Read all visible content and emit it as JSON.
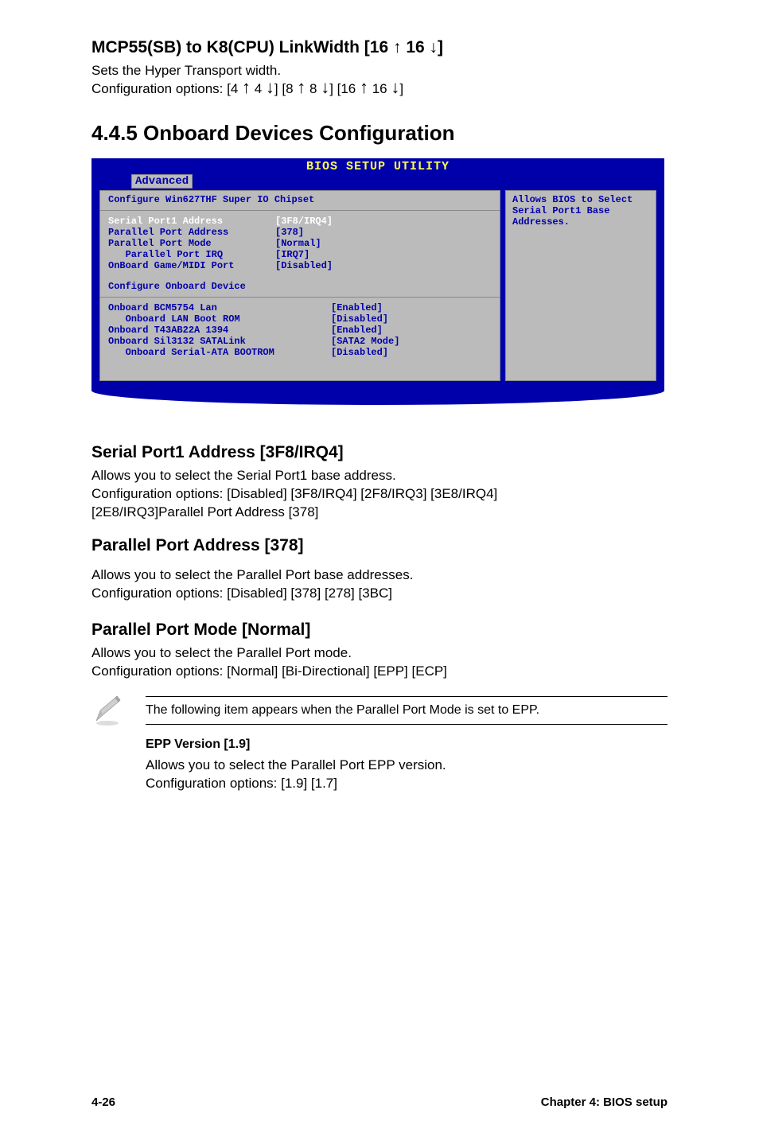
{
  "section_mcp": {
    "heading": "MCP55(SB) to K8(CPU) LinkWidth [16 ↑ 16 ↓]",
    "line1": "Sets the Hyper Transport width.",
    "line2_prefix": "Configuration options: [4 ",
    "opt1": "↑",
    "mid1": " 4 ",
    "opt2": "↓",
    "mid2": "] [8 ",
    "opt3": "↑",
    "mid3": " 8 ",
    "opt4": "↓",
    "mid4": "] [16 ",
    "opt5": "↑",
    "mid5": " 16 ",
    "opt6": "↓",
    "mid6": "]"
  },
  "section_445_heading": "4.4.5   Onboard Devices Configuration",
  "bios": {
    "title": "BIOS SETUP UTILITY",
    "tab": "Advanced",
    "left": {
      "header": "Configure Win627THF Super IO Chipset",
      "rows1": [
        {
          "k": "Serial Port1 Address",
          "v": "[3F8/IRQ4]",
          "sel": true
        },
        {
          "k": "Parallel Port Address",
          "v": "[378]"
        },
        {
          "k": "Parallel Port Mode",
          "v": "[Normal]"
        },
        {
          "k": "   Parallel Port IRQ",
          "v": "[IRQ7]"
        },
        {
          "k": "OnBoard Game/MIDI Port",
          "v": "[Disabled]"
        }
      ],
      "config_line": "Configure Onboard Device",
      "rows2": [
        {
          "k": "Onboard BCM5754 Lan",
          "v": "[Enabled]"
        },
        {
          "k": "   Onboard LAN Boot ROM",
          "v": "[Disabled]"
        },
        {
          "k": "Onboard T43AB22A 1394",
          "v": "[Enabled]"
        },
        {
          "k": "Onboard Sil3132 SATALink",
          "v": "[SATA2 Mode]"
        },
        {
          "k": "   Onboard Serial-ATA BOOTROM",
          "v": "[Disabled]"
        }
      ]
    },
    "right": {
      "line1": "Allows BIOS to Select",
      "line2": "Serial Port1 Base",
      "line3": "Addresses."
    }
  },
  "serial_port": {
    "heading": "Serial Port1 Address [3F8/IRQ4]",
    "l1": "Allows you to select the Serial Port1 base address.",
    "l2": "Configuration options: [Disabled] [3F8/IRQ4] [2F8/IRQ3] [3E8/IRQ4]",
    "l3": "[2E8/IRQ3]Parallel Port Address [378]"
  },
  "parallel_addr": {
    "heading": "Parallel Port Address [378]",
    "l1": "Allows you to select the Parallel Port base addresses.",
    "l2": "Configuration options: [Disabled] [378] [278] [3BC]"
  },
  "parallel_mode": {
    "heading": "Parallel Port Mode [Normal]",
    "l1": "Allows you to select the Parallel Port mode.",
    "l2": "Configuration options: [Normal] [Bi-Directional] [EPP] [ECP]"
  },
  "note_text": "The following item appears when the Parallel Port Mode is set to EPP.",
  "epp": {
    "heading": "EPP Version [1.9]",
    "l1": "Allows you to select the Parallel Port EPP version.",
    "l2": "Configuration options: [1.9] [1.7]"
  },
  "footer": {
    "left": "4-26",
    "right": "Chapter 4: BIOS setup"
  },
  "colors": {
    "bios_bg": "#0000aa",
    "bios_title": "#ffff55",
    "panel_bg": "#bbbbbb",
    "panel_text": "#0000aa",
    "selected_text": "#ffffff"
  }
}
